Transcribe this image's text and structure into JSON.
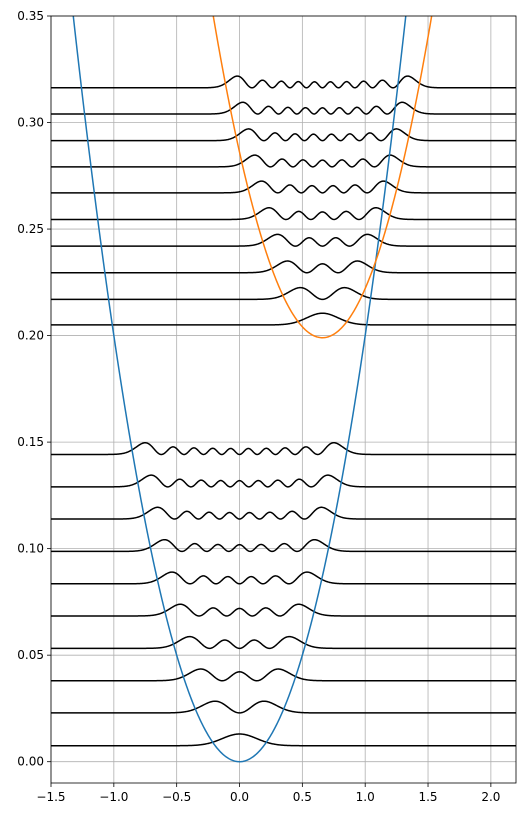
{
  "chart_data": {
    "type": "line",
    "title": "",
    "xlabel": "",
    "ylabel": "",
    "xlim": [
      -1.5,
      2.2
    ],
    "ylim": [
      -0.01,
      0.35
    ],
    "grid": true,
    "x_ticks": [
      -1.5,
      -1.0,
      -0.5,
      0.0,
      0.5,
      1.0,
      1.5,
      2.0
    ],
    "x_tick_labels": [
      "−1.5",
      "−1.0",
      "−0.5",
      "0.0",
      "0.5",
      "1.0",
      "1.5",
      "2.0"
    ],
    "y_ticks": [
      0.0,
      0.05,
      0.1,
      0.15,
      0.2,
      0.25,
      0.3,
      0.35
    ],
    "y_tick_labels": [
      "0.00",
      "0.05",
      "0.10",
      "0.15",
      "0.20",
      "0.25",
      "0.30",
      "0.35"
    ],
    "potentials": [
      {
        "color": "#1f77b4",
        "center_x": 0.0,
        "min_y": 0.0,
        "curvature": 0.2
      },
      {
        "color": "#ff7f0e",
        "center_x": 0.66,
        "min_y": 0.199,
        "curvature": 0.2
      }
    ],
    "wavefunction_color": "#000000",
    "lower_well_levels": [
      0.0075,
      0.0229,
      0.038,
      0.0532,
      0.0684,
      0.0835,
      0.0987,
      0.1139,
      0.129,
      0.1442
    ],
    "upper_well_levels": [
      0.205,
      0.217,
      0.2295,
      0.242,
      0.2545,
      0.267,
      0.2792,
      0.2915,
      0.304,
      0.3163
    ],
    "wavefunction_amplitude": 0.0055
  }
}
